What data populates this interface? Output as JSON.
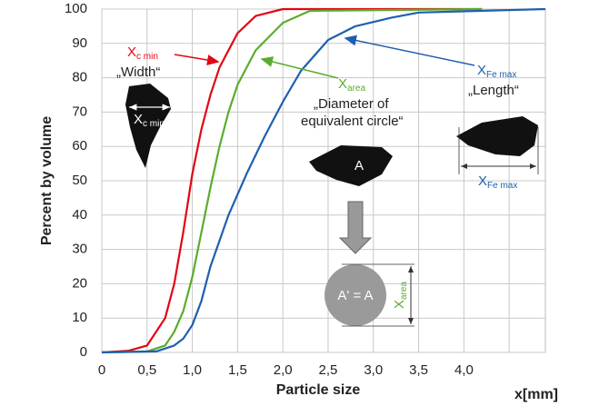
{
  "chart_data": {
    "type": "line",
    "xlabel": "Particle size",
    "ylabel": "Percent by volume",
    "xunit": "x[mm]",
    "xlim": [
      0,
      4.9
    ],
    "ylim": [
      0,
      100
    ],
    "xticks": [
      0,
      {
        "value": 0.5,
        "label": "0,5"
      },
      {
        "value": 1,
        "label": "1,0"
      },
      {
        "value": 1.5,
        "label": "1,5"
      },
      {
        "value": 2,
        "label": "2,0"
      },
      {
        "value": 2.5,
        "label": "2,5"
      },
      {
        "value": 3,
        "label": "3,0"
      },
      {
        "value": 3.5,
        "label": "3,5"
      },
      {
        "value": 4,
        "label": "4,0"
      },
      {
        "value": 4.5,
        "label": null
      }
    ],
    "yticks": [
      0,
      10,
      20,
      30,
      40,
      50,
      60,
      70,
      80,
      90,
      100
    ],
    "grid": true,
    "series": [
      {
        "color": "#e30613",
        "x": [
          0,
          0.3,
          0.5,
          0.7,
          0.8,
          0.9,
          1.0,
          1.1,
          1.2,
          1.3,
          1.4,
          1.5,
          1.7,
          2.0,
          4.2
        ],
        "values": [
          0,
          0.5,
          2,
          10,
          20,
          35,
          52,
          65,
          75,
          83,
          88,
          93,
          98,
          100,
          100
        ]
      },
      {
        "color": "#5aac2e",
        "x": [
          0,
          0.5,
          0.7,
          0.8,
          0.9,
          1.0,
          1.1,
          1.2,
          1.3,
          1.4,
          1.5,
          1.7,
          2.0,
          2.3,
          4.2
        ],
        "values": [
          0,
          0.3,
          2,
          6,
          12,
          22,
          35,
          48,
          60,
          70,
          78,
          88,
          96,
          99.5,
          100
        ]
      },
      {
        "color": "#1f5fb0",
        "x": [
          0,
          0.6,
          0.8,
          0.9,
          1.0,
          1.1,
          1.2,
          1.4,
          1.6,
          1.8,
          2.0,
          2.2,
          2.5,
          2.8,
          3.2,
          3.5,
          4.9
        ],
        "values": [
          0,
          0.3,
          2,
          4,
          8,
          15,
          25,
          40,
          52,
          63,
          73,
          82,
          91,
          95,
          97.5,
          99,
          100
        ]
      }
    ],
    "annotations": [
      {
        "text": "X",
        "sub": "c min"
      },
      {
        "text": "„Width“"
      },
      {
        "text": "X",
        "sub": "area"
      },
      {
        "text": "„Diameter of"
      },
      {
        "text": "equivalent circle“"
      },
      {
        "text": "X",
        "sub": "Fe max"
      },
      {
        "text": "„Length“"
      },
      {
        "text": "X",
        "sub": "c min"
      },
      {
        "text": "A"
      },
      {
        "text": "X",
        "sub": "Fe max"
      },
      {
        "text": "A' = A"
      },
      {
        "text": "X",
        "sub": "area"
      }
    ]
  }
}
